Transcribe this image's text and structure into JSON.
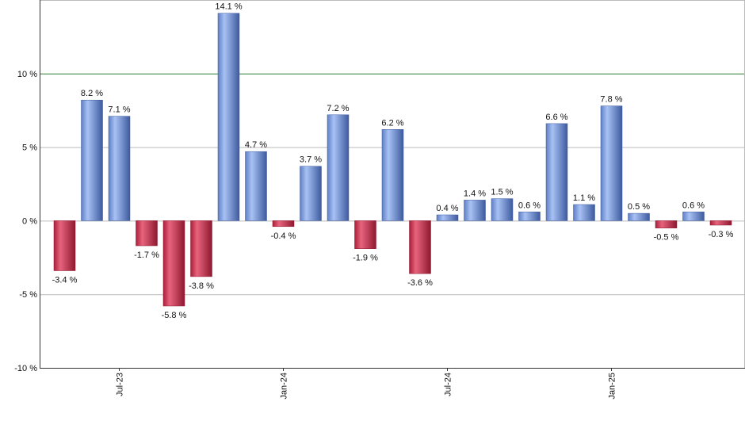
{
  "chart_data": {
    "type": "bar",
    "title": "",
    "xlabel": "",
    "ylabel": "",
    "ylim": [
      -10,
      15
    ],
    "y_ticks": [
      -10,
      -5,
      0,
      5,
      10
    ],
    "y_tick_labels": [
      "-10 %",
      "-5 %",
      "0 %",
      "5 %",
      "10 %"
    ],
    "reference_line": {
      "value": 10,
      "color": "#2e7d32"
    },
    "grid": true,
    "x_tick_labels": [
      {
        "label": "Jul-23",
        "at_index": 2
      },
      {
        "label": "Jan-24",
        "at_index": 8
      },
      {
        "label": "Jul-24",
        "at_index": 14
      },
      {
        "label": "Jan-25",
        "at_index": 20
      }
    ],
    "values": [
      -3.4,
      8.2,
      7.1,
      -1.7,
      -5.8,
      -3.8,
      14.1,
      4.7,
      -0.4,
      3.7,
      7.2,
      -1.9,
      6.2,
      -3.6,
      0.4,
      1.4,
      1.5,
      0.6,
      6.6,
      1.1,
      7.8,
      0.5,
      -0.5,
      0.6,
      -0.3
    ],
    "value_labels": [
      "-3.4 %",
      "8.2 %",
      "7.1 %",
      "-1.7 %",
      "-5.8 %",
      "-3.8 %",
      "14.1 %",
      "4.7 %",
      "-0.4 %",
      "3.7 %",
      "7.2 %",
      "-1.9 %",
      "6.2 %",
      "-3.6 %",
      "0.4 %",
      "1.4 %",
      "1.5 %",
      "0.6 %",
      "6.6 %",
      "1.1 %",
      "7.8 %",
      "0.5 %",
      "-0.5 %",
      "0.6 %",
      "-0.3 %"
    ],
    "colors": {
      "positive": "#7f9fe0",
      "negative": "#c8364f",
      "grid": "#bbbbbb",
      "axis": "#333333"
    }
  }
}
